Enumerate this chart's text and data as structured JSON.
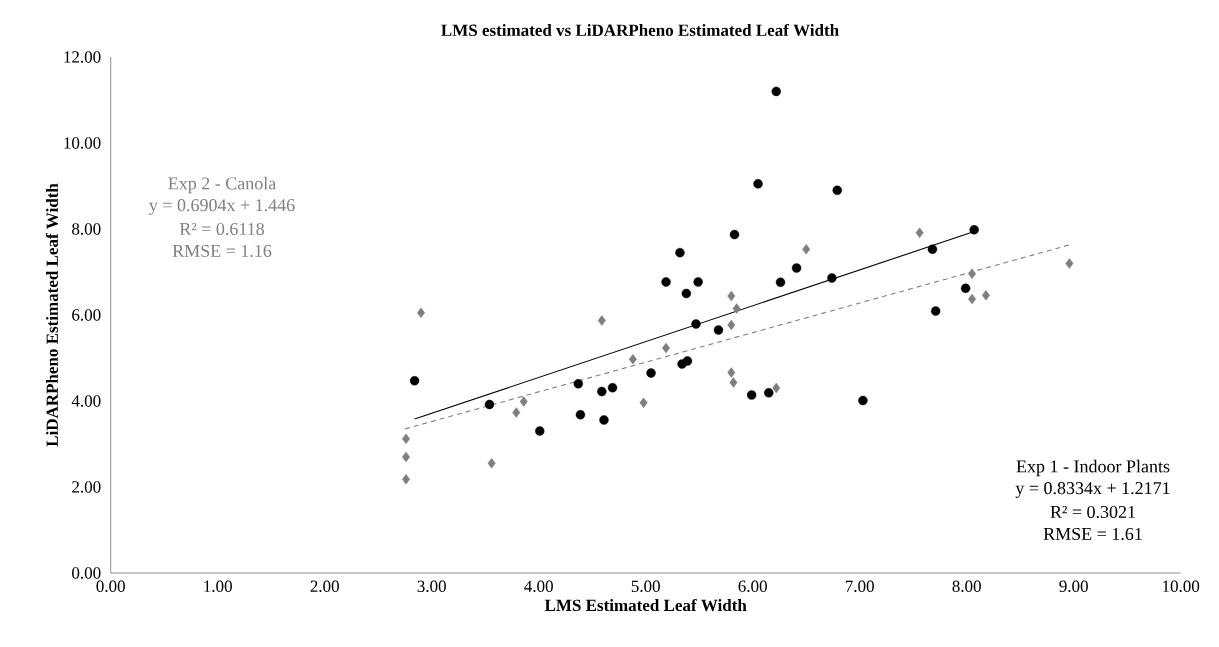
{
  "chart_data": {
    "type": "scatter",
    "title": "LMS estimated vs LiDARPheno Estimated Leaf Width",
    "xlabel": "LMS Estimated Leaf Width",
    "ylabel": "LiDARPheno Estimated Leaf Width",
    "xlim": [
      0,
      10
    ],
    "ylim": [
      0,
      12
    ],
    "xticks": [
      {
        "value": 0,
        "label": "0.00"
      },
      {
        "value": 1,
        "label": "1.00"
      },
      {
        "value": 2,
        "label": "2.00"
      },
      {
        "value": 3,
        "label": "3.00"
      },
      {
        "value": 4,
        "label": "4.00"
      },
      {
        "value": 5,
        "label": "5.00"
      },
      {
        "value": 6,
        "label": "6.00"
      },
      {
        "value": 7,
        "label": "7.00"
      },
      {
        "value": 8,
        "label": "8.00"
      },
      {
        "value": 9,
        "label": "9.00"
      },
      {
        "value": 10,
        "label": "10.00"
      }
    ],
    "yticks": [
      {
        "value": 0,
        "label": "0.00"
      },
      {
        "value": 2,
        "label": "2.00"
      },
      {
        "value": 4,
        "label": "4.00"
      },
      {
        "value": 6,
        "label": "6.00"
      },
      {
        "value": 8,
        "label": "8.00"
      },
      {
        "value": 10,
        "label": "10.00"
      },
      {
        "value": 12,
        "label": "12.00"
      }
    ],
    "annotations": [
      "Exp 2 - Canola",
      "y = 0.6904x + 1.446",
      "R² = 0.6118",
      "RMSE = 1.16",
      "Exp 1 - Indoor Plants",
      "y = 0.8334x + 1.2171",
      "R² = 0.3021",
      "RMSE = 1.61"
    ],
    "series": [
      {
        "color": "#000000",
        "marker": "circle",
        "x": [
          2.84,
          3.54,
          4.01,
          4.37,
          4.39,
          4.59,
          4.61,
          4.69,
          5.05,
          5.34,
          5.39,
          5.99,
          6.15,
          7.03,
          5.47,
          5.68,
          5.19,
          5.38,
          5.49,
          6.26,
          6.41,
          6.74,
          5.32,
          5.83,
          6.05,
          6.79,
          6.22,
          7.68,
          8.07,
          7.99,
          7.71
        ],
        "values": [
          4.47,
          3.92,
          3.3,
          4.4,
          3.68,
          4.22,
          3.56,
          4.31,
          4.65,
          4.86,
          4.93,
          4.14,
          4.19,
          4.01,
          5.79,
          5.65,
          6.77,
          6.5,
          6.77,
          6.76,
          7.09,
          6.86,
          7.45,
          7.87,
          9.05,
          8.9,
          11.2,
          7.53,
          7.98,
          6.62,
          6.09
        ]
      },
      {
        "color": "#7f7f7f",
        "marker": "diamond",
        "x": [
          2.9,
          2.76,
          2.76,
          2.76,
          3.56,
          3.79,
          3.86,
          4.59,
          4.88,
          4.98,
          5.19,
          5.8,
          5.85,
          5.8,
          6.5,
          5.8,
          5.82,
          6.22,
          7.56,
          8.05,
          8.05,
          8.18,
          8.96
        ],
        "values": [
          6.05,
          3.12,
          2.7,
          2.18,
          2.55,
          3.73,
          3.99,
          5.87,
          4.97,
          3.96,
          5.23,
          6.44,
          6.15,
          5.77,
          7.53,
          4.66,
          4.43,
          4.3,
          7.91,
          6.96,
          6.37,
          6.46,
          7.2
        ]
      },
      {
        "type": "line",
        "color": "#000000",
        "line_style": "solid",
        "x": [
          2.84,
          8.07
        ],
        "values": [
          3.58,
          7.94
        ]
      },
      {
        "type": "line",
        "color": "#808080",
        "line_style": "dashed",
        "x": [
          2.75,
          8.96
        ],
        "values": [
          3.35,
          7.63
        ]
      }
    ]
  }
}
